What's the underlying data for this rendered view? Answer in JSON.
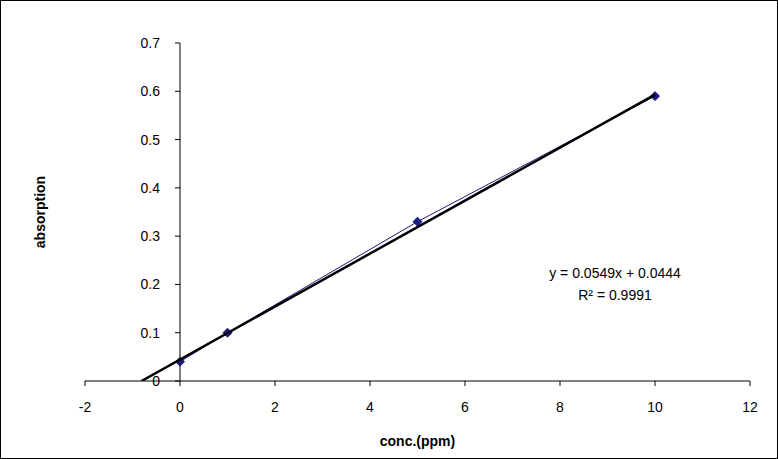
{
  "chart_data": {
    "type": "scatter",
    "x_label": "conc.(ppm)",
    "y_label": "absorption",
    "xlim": [
      -2,
      12
    ],
    "xticks": [
      -2,
      0,
      2,
      4,
      6,
      8,
      10,
      12
    ],
    "ylim": [
      0,
      0.7
    ],
    "yticks": [
      0,
      0.1,
      0.2,
      0.3,
      0.4,
      0.5,
      0.6,
      0.7
    ],
    "grid": false,
    "annotations": [
      "y = 0.0549x + 0.0444",
      "R² = 0.9991"
    ],
    "series": [
      {
        "type": "line",
        "color": "#1a1a80",
        "marker": "diamond",
        "line_style": "solid",
        "x": [
          0,
          1,
          5,
          10
        ],
        "values": [
          0.04,
          0.1,
          0.33,
          0.59
        ]
      },
      {
        "type": "line",
        "color": "#000000",
        "marker": "none",
        "line_style": "solid",
        "x": [
          -0.81,
          10
        ],
        "values": [
          0,
          0.593
        ]
      }
    ]
  }
}
